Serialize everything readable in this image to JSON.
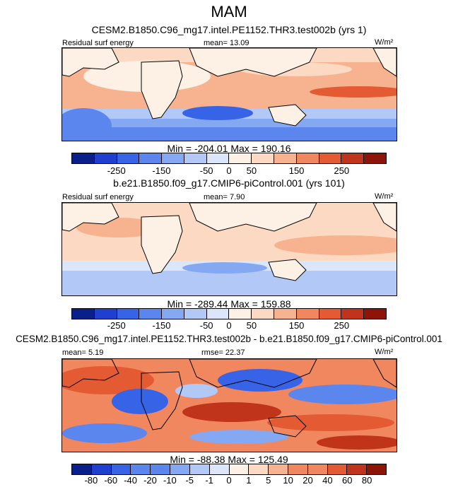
{
  "figure_title": "MAM",
  "units": "W/m²",
  "colors": {
    "scale": [
      "#0b1f8a",
      "#1f3fd0",
      "#3763e6",
      "#5b86ee",
      "#85a8f3",
      "#b2c9f7",
      "#dce6fb",
      "#fdf1e5",
      "#fcd9c2",
      "#f7b28f",
      "#f1875e",
      "#e35a33",
      "#c1341c",
      "#8f1408"
    ],
    "land_border": "#000000"
  },
  "panels": [
    {
      "case_title": "CESM2.B1850.C96_mg17.intel.PE1152.THR3.test002b (yrs 1)",
      "variable": "Residual surf energy",
      "mean": "mean=  13.09",
      "rmse": "",
      "units": "W/m²",
      "minmax": "Min = -204.01 Max = 190.16",
      "colorbar_ticks": [
        "-250",
        "-150",
        "-50",
        "0",
        "50",
        "150",
        "250"
      ]
    },
    {
      "case_title": "b.e21.B1850.f09_g17.CMIP6-piControl.001 (yrs 101)",
      "variable": "Residual surf energy",
      "mean": "mean=  7.90",
      "rmse": "",
      "units": "W/m²",
      "minmax": "Min = -289.44 Max = 159.88",
      "colorbar_ticks": [
        "-250",
        "-150",
        "-50",
        "0",
        "50",
        "150",
        "250"
      ]
    },
    {
      "case_title": "CESM2.B1850.C96_mg17.intel.PE1152.THR3.test002b - b.e21.B1850.f09_g17.CMIP6-piControl.001",
      "variable": "",
      "mean": "mean=  5.19",
      "rmse": "rmse=  22.37",
      "units": "W/m²",
      "minmax": "Min = -88.38 Max = 125.49",
      "colorbar_ticks": [
        "-80",
        "-60",
        "-40",
        "-20",
        "-10",
        "-5",
        "-1",
        "0",
        "1",
        "5",
        "10",
        "20",
        "40",
        "60",
        "80"
      ]
    }
  ]
}
